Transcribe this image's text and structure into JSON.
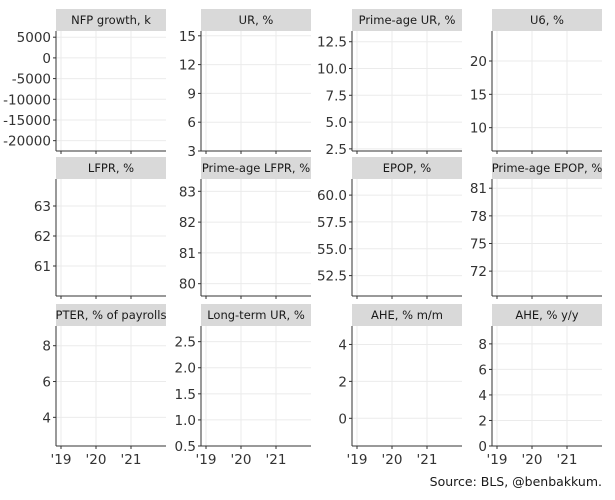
{
  "caption": "Source: BLS, @benbakkum.",
  "x_ticks": [
    "'19",
    "'20",
    "'21"
  ],
  "chart_data": [
    {
      "type": "line",
      "title": "NFP growth, k",
      "ylim": [
        -22500,
        6500
      ],
      "y_ticks": [
        5000,
        0,
        -5000,
        -10000,
        -15000,
        -20000
      ],
      "y_tick_labels": [
        "5000",
        "0",
        "-5000",
        "-10000",
        "-15000",
        "-20000"
      ],
      "series": []
    },
    {
      "type": "line",
      "title": "UR, %",
      "ylim": [
        3,
        15.5
      ],
      "y_ticks": [
        15,
        12,
        9,
        6,
        3
      ],
      "y_tick_labels": [
        "15",
        "12",
        "9",
        "6",
        "3"
      ],
      "series": []
    },
    {
      "type": "line",
      "title": "Prime-age UR, %",
      "ylim": [
        2.3,
        13.5
      ],
      "y_ticks": [
        12.5,
        10.0,
        7.5,
        5.0,
        2.5
      ],
      "y_tick_labels": [
        "12.5",
        "10.0",
        "7.5",
        "5.0",
        "2.5"
      ],
      "series": []
    },
    {
      "type": "line",
      "title": "U6, %",
      "ylim": [
        6.5,
        24.5
      ],
      "y_ticks": [
        20,
        15,
        10
      ],
      "y_tick_labels": [
        "20",
        "15",
        "10"
      ],
      "series": []
    },
    {
      "type": "line",
      "title": "LFPR, %",
      "ylim": [
        60.0,
        63.9
      ],
      "y_ticks": [
        63,
        62,
        61
      ],
      "y_tick_labels": [
        "63",
        "62",
        "61"
      ],
      "series": []
    },
    {
      "type": "line",
      "title": "Prime-age LFPR, %",
      "ylim": [
        79.6,
        83.4
      ],
      "y_ticks": [
        83,
        82,
        81,
        80
      ],
      "y_tick_labels": [
        "83",
        "82",
        "81",
        "80"
      ],
      "series": []
    },
    {
      "type": "line",
      "title": "EPOP, %",
      "ylim": [
        50.6,
        61.5
      ],
      "y_ticks": [
        60.0,
        57.5,
        55.0,
        52.5
      ],
      "y_tick_labels": [
        "60.0",
        "57.5",
        "55.0",
        "52.5"
      ],
      "series": []
    },
    {
      "type": "line",
      "title": "Prime-age EPOP, %",
      "ylim": [
        69.3,
        82.0
      ],
      "y_ticks": [
        81,
        78,
        75,
        72
      ],
      "y_tick_labels": [
        "81",
        "78",
        "75",
        "72"
      ],
      "series": []
    },
    {
      "type": "line",
      "title": "PTER, % of payrolls",
      "ylim": [
        2.4,
        9.1
      ],
      "y_ticks": [
        8,
        6,
        4
      ],
      "y_tick_labels": [
        "8",
        "6",
        "4"
      ],
      "series": []
    },
    {
      "type": "line",
      "title": "Long-term UR, %",
      "ylim": [
        0.5,
        2.8
      ],
      "y_ticks": [
        2.5,
        2.0,
        1.5,
        1.0,
        0.5
      ],
      "y_tick_labels": [
        "2.5",
        "2.0",
        "1.5",
        "1.0",
        "0.5"
      ],
      "series": []
    },
    {
      "type": "line",
      "title": "AHE, % m/m",
      "ylim": [
        -1.5,
        5.0
      ],
      "y_ticks": [
        4,
        2,
        0
      ],
      "y_tick_labels": [
        "4",
        "2",
        "0"
      ],
      "series": []
    },
    {
      "type": "line",
      "title": "AHE, % y/y",
      "ylim": [
        0,
        9.4
      ],
      "y_ticks": [
        8,
        6,
        4,
        2,
        0
      ],
      "y_tick_labels": [
        "8",
        "6",
        "4",
        "2",
        "0"
      ],
      "series": []
    }
  ]
}
